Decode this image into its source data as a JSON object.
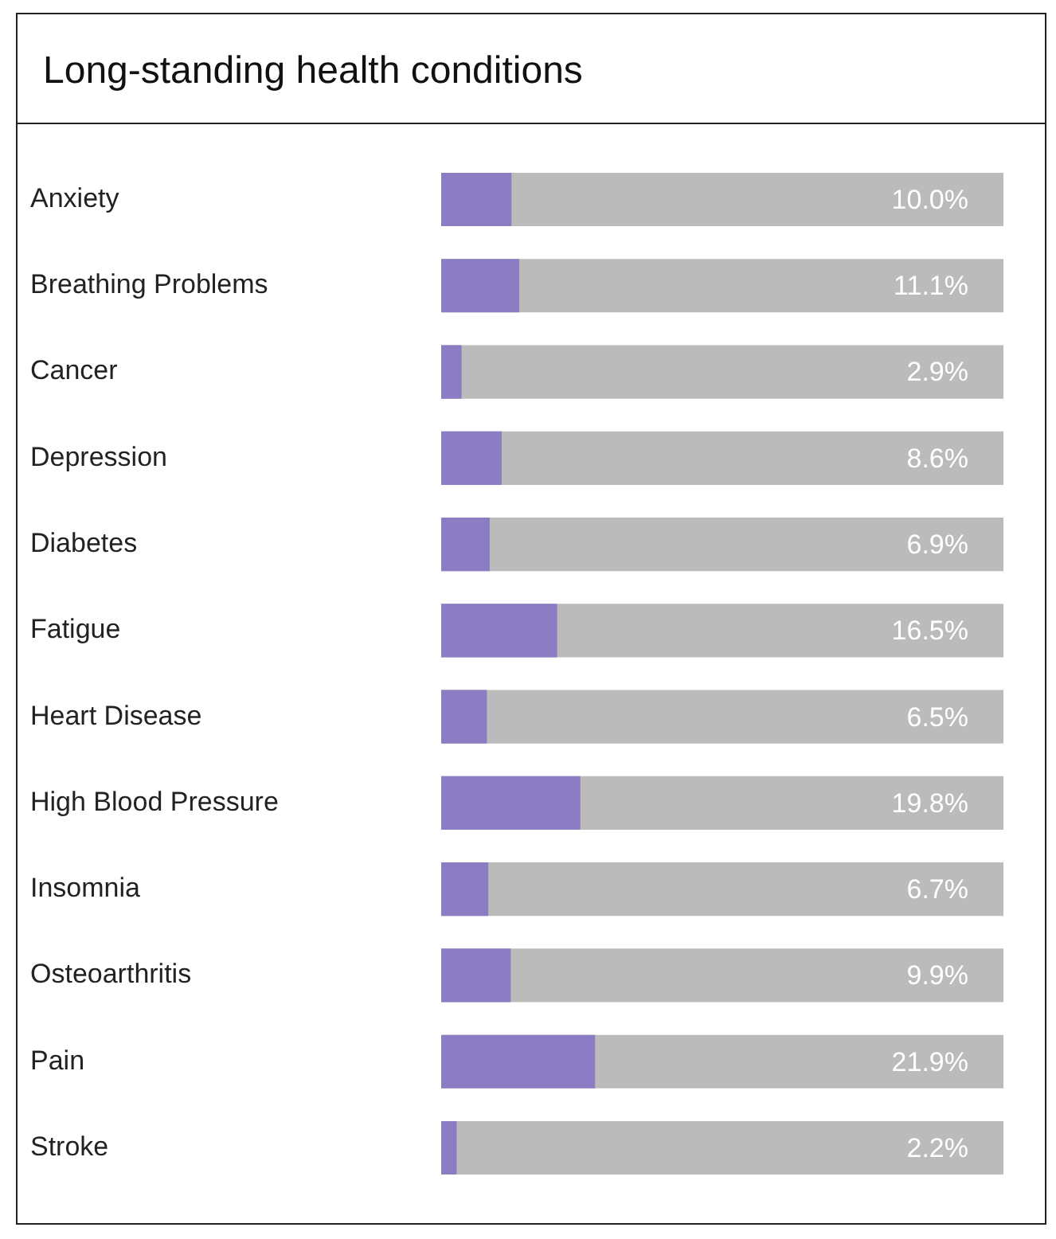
{
  "chart_data": {
    "type": "bar",
    "orientation": "horizontal",
    "title": "Long-standing health conditions",
    "categories": [
      "Anxiety",
      "Breathing Problems",
      "Cancer",
      "Depression",
      "Diabetes",
      "Fatigue",
      "Heart Disease",
      "High Blood Pressure",
      "Insomnia",
      "Osteoarthritis",
      "Pain",
      "Stroke"
    ],
    "values": [
      10.0,
      11.1,
      2.9,
      8.6,
      6.9,
      16.5,
      6.5,
      19.8,
      6.7,
      9.9,
      21.9,
      2.2
    ],
    "value_labels": [
      "10.0%",
      "11.1%",
      "2.9%",
      "8.6%",
      "6.9%",
      "16.5%",
      "6.5%",
      "19.8%",
      "6.7%",
      "9.9%",
      "21.9%",
      "2.2%"
    ],
    "color": "#8c7cc3",
    "xlim": [
      0,
      80
    ],
    "tick_labels": "y",
    "grid": false,
    "legend": false
  }
}
